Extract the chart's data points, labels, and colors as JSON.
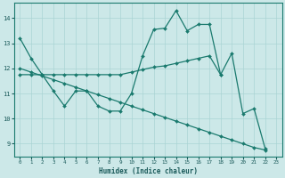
{
  "xlabel": "Humidex (Indice chaleur)",
  "bg_color": "#cce8e8",
  "line_color": "#1a7a6e",
  "grid_color": "#aad4d4",
  "line1_x": [
    0,
    1,
    2,
    3,
    4,
    5,
    6,
    7,
    8,
    9,
    10,
    11,
    12,
    13,
    14,
    15,
    16,
    17,
    18,
    19,
    20,
    21,
    22
  ],
  "line1_y": [
    13.2,
    12.4,
    11.75,
    11.1,
    10.5,
    11.1,
    11.1,
    10.5,
    10.3,
    10.3,
    11.0,
    12.5,
    13.55,
    13.6,
    14.3,
    13.5,
    13.75,
    13.75,
    11.75,
    12.6,
    10.2,
    10.4,
    8.8
  ],
  "line2_x": [
    0,
    1,
    2,
    3,
    4,
    5,
    6,
    7,
    8,
    9,
    10,
    11,
    12,
    13,
    14,
    15,
    16,
    17,
    18
  ],
  "line2_y": [
    11.75,
    11.75,
    11.75,
    11.75,
    11.75,
    11.75,
    11.75,
    11.75,
    11.75,
    11.75,
    11.85,
    11.95,
    12.05,
    12.1,
    12.2,
    12.3,
    12.4,
    12.5,
    11.75
  ],
  "line3_x": [
    0,
    1,
    2,
    3,
    4,
    5,
    6,
    7,
    8,
    9,
    10,
    11,
    12,
    13,
    14,
    15,
    16,
    17,
    18,
    19,
    20,
    21,
    22
  ],
  "line3_y": [
    12.0,
    11.85,
    11.7,
    11.55,
    11.4,
    11.25,
    11.1,
    10.95,
    10.8,
    10.65,
    10.5,
    10.35,
    10.2,
    10.05,
    9.9,
    9.75,
    9.6,
    9.45,
    9.3,
    9.15,
    9.0,
    8.85,
    8.75
  ],
  "ylim": [
    8.5,
    14.6
  ],
  "xlim": [
    -0.5,
    23.5
  ],
  "yticks": [
    9,
    10,
    11,
    12,
    13,
    14
  ],
  "xticks": [
    0,
    1,
    2,
    3,
    4,
    5,
    6,
    7,
    8,
    9,
    10,
    11,
    12,
    13,
    14,
    15,
    16,
    17,
    18,
    19,
    20,
    21,
    22,
    23
  ]
}
